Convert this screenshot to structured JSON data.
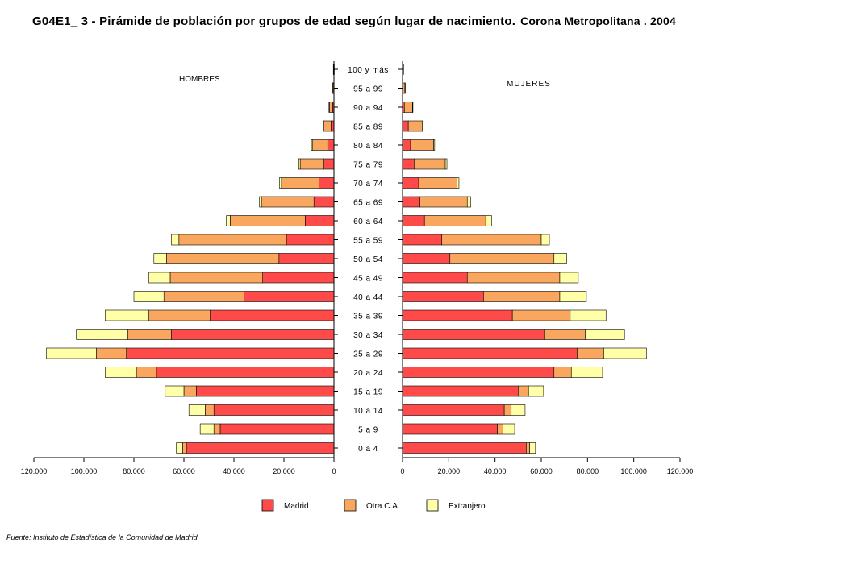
{
  "title": {
    "main": "G04E1_ 3 - Pirámide de población por grupos de edad según lugar de nacimiento.",
    "sub": "Corona Metropolitana . 2004"
  },
  "source": "Fuente: Instituto de Estadística de la Comunidad de Madrid",
  "colors": {
    "Madrid": "#ff4a4a",
    "Otra C.A.": "#f9a75e",
    "Extranjero": "#ffffa8"
  },
  "chart_data": {
    "type": "bar",
    "orientation": "horizontal-population-pyramid",
    "left_label": "HOMBRES",
    "right_label": "MUJERES",
    "categories": [
      "100 y más",
      "95 a 99",
      "90 a 94",
      "85 a 89",
      "80 a 84",
      "75 a 79",
      "70 a 74",
      "65 a 69",
      "60 a 64",
      "55 a 59",
      "50 a 54",
      "45 a 49",
      "40 a  44",
      "35 a 39",
      "30 a 34",
      "25 a 29",
      "20 a 24",
      "15 a 19",
      "10 a 14",
      "5 a 9",
      "0 a 4"
    ],
    "xlim": [
      0,
      120000
    ],
    "ticks": [
      0,
      20000,
      40000,
      60000,
      80000,
      100000,
      120000
    ],
    "tick_labels": [
      "0",
      "20.000",
      "40.000",
      "60.000",
      "80.000",
      "100.000",
      "120.000"
    ],
    "legend": [
      "Madrid",
      "Otra C.A.",
      "Extranjero"
    ],
    "legend_position": "bottom",
    "hombres": {
      "series": [
        {
          "name": "Madrid",
          "values": [
            50,
            150,
            500,
            1200,
            2500,
            4000,
            6000,
            8000,
            11500,
            19000,
            22000,
            28500,
            36000,
            49500,
            65000,
            83000,
            71000,
            55000,
            48000,
            45500,
            59000
          ]
        },
        {
          "name": "Otra C.A.",
          "values": [
            150,
            450,
            1300,
            2800,
            6000,
            9500,
            15000,
            21000,
            30000,
            43000,
            45000,
            37000,
            32000,
            24500,
            17500,
            12000,
            8000,
            5000,
            3500,
            2500,
            1500
          ]
        },
        {
          "name": "Extranjero",
          "values": [
            50,
            100,
            200,
            300,
            500,
            600,
            800,
            800,
            1500,
            3000,
            5000,
            8500,
            12000,
            17500,
            20500,
            20000,
            12500,
            7500,
            6500,
            5500,
            2500
          ]
        }
      ]
    },
    "mujeres": {
      "series": [
        {
          "name": "Madrid",
          "values": [
            50,
            200,
            800,
            2500,
            3500,
            5000,
            7000,
            7500,
            9500,
            17000,
            20500,
            28000,
            35000,
            47500,
            61500,
            75500,
            65500,
            50000,
            44000,
            41000,
            53500
          ]
        },
        {
          "name": "Otra C.A.",
          "values": [
            200,
            800,
            3500,
            6000,
            10000,
            13500,
            16500,
            20500,
            26500,
            43000,
            45000,
            40000,
            33000,
            25000,
            17500,
            11500,
            7500,
            4500,
            3000,
            2500,
            1500
          ]
        },
        {
          "name": "Extranjero",
          "values": [
            50,
            100,
            200,
            300,
            400,
            700,
            900,
            1500,
            2500,
            3500,
            5500,
            8000,
            11500,
            15500,
            17000,
            18500,
            13500,
            6500,
            6000,
            5000,
            2500
          ]
        }
      ]
    }
  }
}
